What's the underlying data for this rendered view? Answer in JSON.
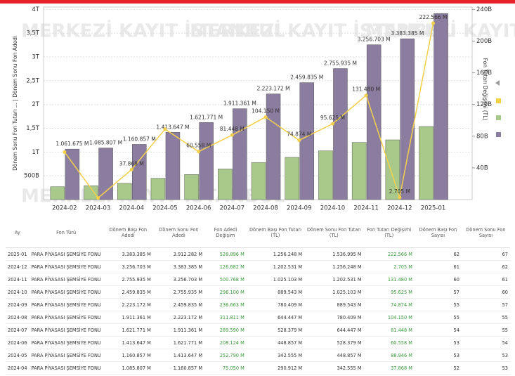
{
  "chart_data": {
    "type": "bar-line",
    "watermark": "MERKEZİ KAYIT İSTANBUL",
    "y_label": "Dönem Sonu Fon Tutarı ... | Dönem Sonu Fon Adedi",
    "y2_label": "Fon Tutarı Değişimi (TL)",
    "categories": [
      "2024-02",
      "2024-03",
      "2024-04",
      "2024-05",
      "2024-06",
      "2024-07",
      "2024-08",
      "2024-09",
      "2024-10",
      "2024-11",
      "2024-12",
      "2025-01"
    ],
    "series": [
      {
        "kind": "bar",
        "color": "#a9c98b",
        "values": [
          0.27,
          0.290912,
          0.342555,
          0.448857,
          0.528379,
          0.644447,
          0.780409,
          0.889543,
          1.025103,
          1.202531,
          1.256248,
          1.536995
        ]
      },
      {
        "kind": "bar",
        "color": "#8b7d9f",
        "values": [
          1.061675,
          1.085807,
          1.160857,
          1.413647,
          1.621771,
          1.911361,
          2.223172,
          2.459835,
          2.755935,
          3.256703,
          3.383385,
          3.912282
        ],
        "value_labels": [
          "1.061.675 M",
          "1.085.807 M",
          "1.160.857 M",
          "1.413.647 M",
          "1.621.771 M",
          "1.911.361 M",
          "2.223.172 M",
          "2.459.835 M",
          "2.755.935 M",
          "3.256.703 M",
          "3.383.385 M",
          null
        ]
      },
      {
        "kind": "line",
        "axis": "y2",
        "color": "#f4d04a",
        "values": [
          60,
          2,
          37.868,
          88.946,
          60.558,
          81.448,
          104.15,
          74.874,
          95.625,
          131.48,
          2.705,
          222.566
        ],
        "value_labels": [
          null,
          null,
          "37.868 M",
          null,
          "60.558 M",
          "81.448 M",
          "104.150 M",
          "74.874 M",
          "95.625 M",
          "131.480 M",
          "2.705 M",
          "222.566 M"
        ]
      }
    ],
    "ylim": [
      0,
      4.05
    ],
    "yticks": [
      {
        "value": 0.5,
        "label": "500B"
      },
      {
        "value": 1,
        "label": "1T"
      },
      {
        "value": 1.5,
        "label": "1,5T"
      },
      {
        "value": 2,
        "label": "2T"
      },
      {
        "value": 2.5,
        "label": "2,5T"
      },
      {
        "value": 3,
        "label": "3T"
      },
      {
        "value": 3.5,
        "label": "3,5T"
      },
      {
        "value": 4,
        "label": "4T"
      }
    ],
    "y2lim": [
      0,
      243
    ],
    "y2ticks": [
      {
        "value": 40,
        "label": "40B"
      },
      {
        "value": 80,
        "label": "80B"
      },
      {
        "value": 120,
        "label": "120B"
      },
      {
        "value": 160,
        "label": "160B"
      },
      {
        "value": 200,
        "label": "200B"
      },
      {
        "value": 240,
        "label": "240B"
      }
    ],
    "grid": true
  },
  "table": {
    "headers": [
      "Ay",
      "Fon Türü",
      "Dönem Başı Fon Adedi",
      "Dönem Sonu Fon Adedi",
      "Fon Adedi Değişim",
      "Dönem Başı Fon Tutarı (TL)",
      "Dönem Sonu Fon Tutarı (TL)",
      "Fon Tutarı Değişimi (TL)",
      "Dönem Başı Fon Sayısı",
      "Dönem Sonu Fon Sayısı"
    ],
    "rows": [
      [
        "2025-01",
        "PARA PİYASASI ŞEMSİYE FONU",
        "3.383.385 M",
        "3.912.282 M",
        "528.896 M",
        "1.256.248 M",
        "1.536.995 M",
        "222.566 M",
        "62",
        "67"
      ],
      [
        "2024-12",
        "PARA PİYASASI ŞEMSİYE FONU",
        "3.256.703 M",
        "3.383.385 M",
        "126.682 M",
        "1.202.531 M",
        "1.256.248 M",
        "2.705 M",
        "61",
        "62"
      ],
      [
        "2024-11",
        "PARA PİYASASI ŞEMSİYE FONU",
        "2.755.935 M",
        "3.256.703 M",
        "500.768 M",
        "1.025.103 M",
        "1.202.531 M",
        "131.480 M",
        "60",
        "61"
      ],
      [
        "2024-10",
        "PARA PİYASASI ŞEMSİYE FONU",
        "2.459.835 M",
        "2.755.935 M",
        "296.100 M",
        "889.543 M",
        "1.025.103 M",
        "95.625 M",
        "57",
        "60"
      ],
      [
        "2024-09",
        "PARA PİYASASI ŞEMSİYE FONU",
        "2.223.172 M",
        "2.459.835 M",
        "236.663 M",
        "780.409 M",
        "889.543 M",
        "74.874 M",
        "55",
        "57"
      ],
      [
        "2024-08",
        "PARA PİYASASI ŞEMSİYE FONU",
        "1.911.361 M",
        "2.223.172 M",
        "311.811 M",
        "644.447 M",
        "780.409 M",
        "104.150 M",
        "55",
        "55"
      ],
      [
        "2024-07",
        "PARA PİYASASI ŞEMSİYE FONU",
        "1.621.771 M",
        "1.911.361 M",
        "289.590 M",
        "528.379 M",
        "644.447 M",
        "81.448 M",
        "54",
        "55"
      ],
      [
        "2024-06",
        "PARA PİYASASI ŞEMSİYE FONU",
        "1.413.647 M",
        "1.621.771 M",
        "208.124 M",
        "448.857 M",
        "528.379 M",
        "60.558 M",
        "53",
        "54"
      ],
      [
        "2024-05",
        "PARA PİYASASI ŞEMSİYE FONU",
        "1.160.857 M",
        "1.413.647 M",
        "252.790 M",
        "342.555 M",
        "448.857 M",
        "88.946 M",
        "53",
        "53"
      ],
      [
        "2024-04",
        "PARA PİYASASI ŞEMSİYE FONU",
        "1.085.807 M",
        "1.160.857 M",
        "75.050 M",
        "290.912 M",
        "342.555 M",
        "37.868 M",
        "52",
        "53"
      ]
    ]
  }
}
